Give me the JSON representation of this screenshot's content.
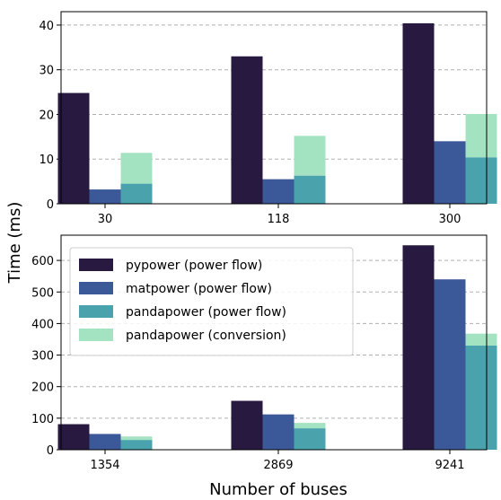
{
  "figure": {
    "ylabel": "Time (ms)",
    "xlabel": "Number of buses"
  },
  "legend": {
    "placement": "top-left of bottom panel",
    "entries": [
      {
        "label": "pypower (power flow)",
        "color": "#27193f"
      },
      {
        "label": "matpower (power flow)",
        "color": "#3b5998"
      },
      {
        "label": "pandapower (power flow)",
        "color": "#49a2ac"
      },
      {
        "label": "pandapower (conversion)",
        "color": "#a4e3c1"
      }
    ]
  },
  "chart_data": [
    {
      "type": "bar",
      "panel": "top",
      "categories": [
        "30",
        "118",
        "300"
      ],
      "ylim": [
        0,
        43
      ],
      "yticks": [
        0,
        10,
        20,
        30,
        40
      ],
      "grid": "horizontal dashed",
      "series": [
        {
          "name": "pypower (power flow)",
          "color": "#27193f",
          "values": [
            24.8,
            33.0,
            40.4
          ]
        },
        {
          "name": "matpower (power flow)",
          "color": "#3b5998",
          "values": [
            3.2,
            5.5,
            14.0
          ]
        },
        {
          "name": "pandapower (power flow)",
          "color": "#49a2ac",
          "values": [
            4.5,
            6.3,
            10.4
          ],
          "stacked_base": true
        },
        {
          "name": "pandapower (conversion)",
          "color": "#a4e3c1",
          "values": [
            6.9,
            8.9,
            9.7
          ],
          "stacked_on": "pandapower (power flow)"
        }
      ]
    },
    {
      "type": "bar",
      "panel": "bottom",
      "categories": [
        "1354",
        "2869",
        "9241"
      ],
      "ylim": [
        0,
        680
      ],
      "yticks": [
        0,
        100,
        200,
        300,
        400,
        500,
        600
      ],
      "grid": "horizontal dashed",
      "series": [
        {
          "name": "pypower (power flow)",
          "color": "#27193f",
          "values": [
            81,
            155,
            648
          ]
        },
        {
          "name": "matpower (power flow)",
          "color": "#3b5998",
          "values": [
            50,
            112,
            540
          ]
        },
        {
          "name": "pandapower (power flow)",
          "color": "#49a2ac",
          "values": [
            31,
            68,
            330
          ],
          "stacked_base": true
        },
        {
          "name": "pandapower (conversion)",
          "color": "#a4e3c1",
          "values": [
            11,
            17,
            38
          ],
          "stacked_on": "pandapower (power flow)"
        }
      ]
    }
  ]
}
